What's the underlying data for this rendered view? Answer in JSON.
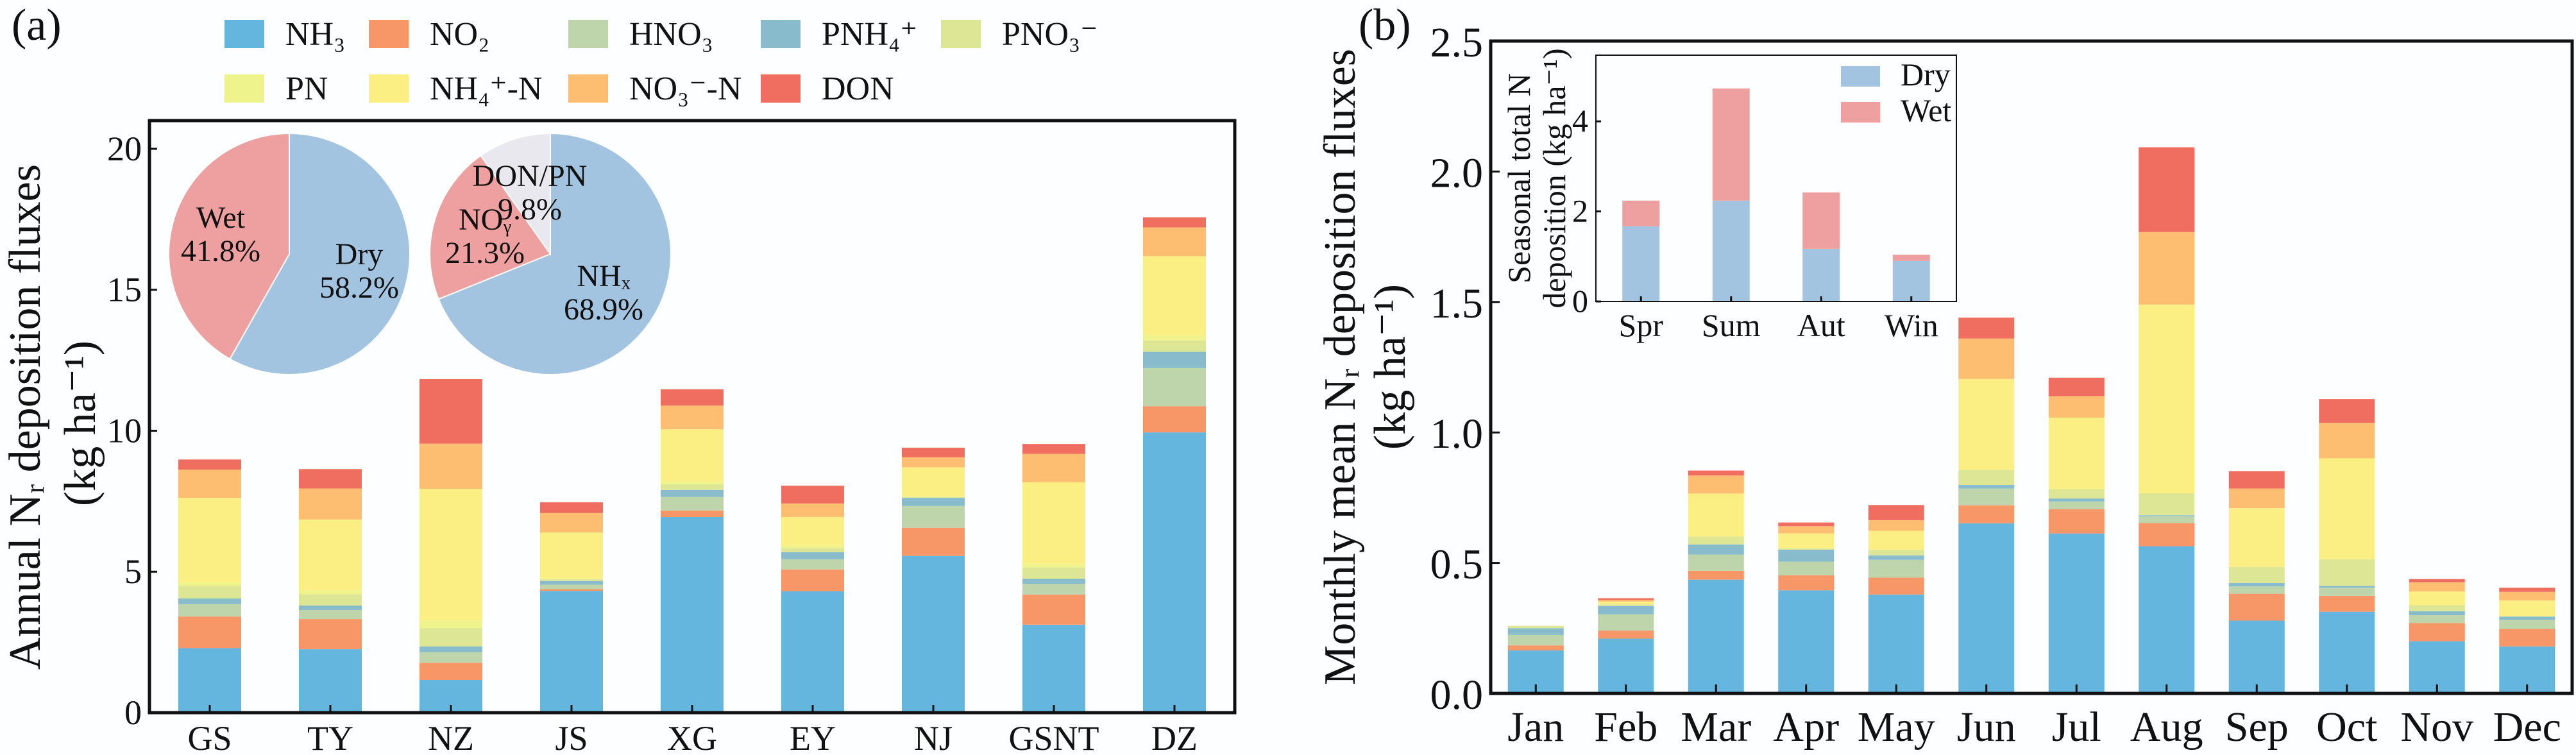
{
  "panels": {
    "a": "(a)",
    "b": "(b)"
  },
  "legend": {
    "series": [
      {
        "key": "NH3",
        "name": "NH₃",
        "color": "#65b6de"
      },
      {
        "key": "NO2",
        "name": "NO₂",
        "color": "#f79767"
      },
      {
        "key": "HNO3",
        "name": "HNO₃",
        "color": "#bed4ab"
      },
      {
        "key": "PNH4",
        "name": "PNH₄⁺",
        "color": "#88bccd"
      },
      {
        "key": "PNO3",
        "name": "PNO₃⁻",
        "color": "#dce695"
      },
      {
        "key": "PN",
        "name": "PN",
        "color": "#eff38c"
      },
      {
        "key": "NH4N",
        "name": "NH₄⁺-N",
        "color": "#fbef84"
      },
      {
        "key": "NO3N",
        "name": "NO₃⁻-N",
        "color": "#fdbe72"
      },
      {
        "key": "DON",
        "name": "DON",
        "color": "#f06e5f"
      }
    ]
  },
  "chart_data": [
    {
      "type": "bar",
      "stacked": true,
      "ylabel_line1": "Annual  Nᵣ deposition fluxes",
      "ylabel_line2": "(kg ha⁻¹)",
      "xlabel": "",
      "ylim": [
        0,
        21
      ],
      "yticks": [
        "0",
        "5",
        "10",
        "15",
        "20"
      ],
      "categories": [
        "GS",
        "TY",
        "NZ",
        "JS",
        "XG",
        "EY",
        "NJ",
        "GSNT",
        "DZ"
      ],
      "series": [
        {
          "name": "NH₃",
          "values": [
            2.29,
            2.25,
            1.16,
            4.32,
            6.94,
            4.31,
            5.56,
            3.12,
            9.94
          ]
        },
        {
          "name": "NO₂",
          "values": [
            1.12,
            1.07,
            0.61,
            0.06,
            0.23,
            0.77,
            1.0,
            1.07,
            0.93
          ]
        },
        {
          "name": "HNO₃",
          "values": [
            0.44,
            0.32,
            0.38,
            0.16,
            0.48,
            0.36,
            0.77,
            0.38,
            1.35
          ]
        },
        {
          "name": "PNH₄⁺",
          "values": [
            0.2,
            0.16,
            0.2,
            0.13,
            0.25,
            0.25,
            0.29,
            0.18,
            0.58
          ]
        },
        {
          "name": "PNO₃⁻",
          "values": [
            0.45,
            0.4,
            0.65,
            0.06,
            0.2,
            0.15,
            0.03,
            0.4,
            0.4
          ]
        },
        {
          "name": "PN",
          "values": [
            0.12,
            0.13,
            0.27,
            0.03,
            0.1,
            0.08,
            0.02,
            0.12,
            0.18
          ]
        },
        {
          "name": "NH₄⁺-N",
          "values": [
            3.0,
            2.52,
            4.67,
            1.63,
            1.85,
            1.02,
            1.03,
            2.9,
            2.81
          ]
        },
        {
          "name": "NO₃⁻-N",
          "values": [
            1.0,
            1.1,
            1.6,
            0.69,
            0.84,
            0.48,
            0.36,
            1.01,
            1.02
          ]
        },
        {
          "name": "DON",
          "values": [
            0.36,
            0.69,
            2.29,
            0.38,
            0.58,
            0.63,
            0.34,
            0.35,
            0.36
          ]
        }
      ],
      "legend_placement": "top"
    },
    {
      "type": "pie",
      "slices": [
        {
          "label": "Dry",
          "value": 58.2,
          "text": "58.2%",
          "color": "#a3c4e0"
        },
        {
          "label": "Wet",
          "value": 41.8,
          "text": "41.8%",
          "color": "#eda09f"
        }
      ]
    },
    {
      "type": "pie",
      "slices": [
        {
          "label": "NHₓ",
          "value": 68.9,
          "text": "68.9%",
          "color": "#a3c4e0"
        },
        {
          "label": "NOᵧ",
          "value": 21.3,
          "text": "21.3%",
          "color": "#eda09f"
        },
        {
          "label": "DON/PN",
          "value": 9.8,
          "text": "9.8%",
          "color": "#eae8ef"
        }
      ]
    },
    {
      "type": "bar",
      "stacked": true,
      "ylabel_line1": "Monthly mean Nᵣ deposition fluxes",
      "ylabel_line2": "(kg ha⁻¹)",
      "ylim": [
        0,
        2.5
      ],
      "yticks": [
        "0.0",
        "0.5",
        "1.0",
        "1.5",
        "2.0",
        "2.5"
      ],
      "categories": [
        "Jan",
        "Feb",
        "Mar",
        "Apr",
        "May",
        "Jun",
        "Jul",
        "Aug",
        "Sep",
        "Oct",
        "Nov",
        "Dec"
      ],
      "series": [
        {
          "name": "NH₃",
          "values": [
            0.165,
            0.21,
            0.436,
            0.395,
            0.379,
            0.652,
            0.613,
            0.564,
            0.279,
            0.313,
            0.2,
            0.18
          ]
        },
        {
          "name": "NO₂",
          "values": [
            0.019,
            0.031,
            0.034,
            0.058,
            0.065,
            0.069,
            0.093,
            0.089,
            0.103,
            0.061,
            0.07,
            0.067
          ]
        },
        {
          "name": "HNO₃",
          "values": [
            0.04,
            0.062,
            0.062,
            0.052,
            0.068,
            0.064,
            0.03,
            0.026,
            0.028,
            0.031,
            0.03,
            0.035
          ]
        },
        {
          "name": "PNH₄⁺",
          "values": [
            0.026,
            0.032,
            0.039,
            0.046,
            0.017,
            0.014,
            0.011,
            0.004,
            0.013,
            0.007,
            0.015,
            0.012
          ]
        },
        {
          "name": "PNO₃⁻",
          "values": [
            0.009,
            0.006,
            0.03,
            0.005,
            0.022,
            0.058,
            0.036,
            0.084,
            0.062,
            0.102,
            0.023,
            0.003
          ]
        },
        {
          "name": "PN",
          "values": [
            0,
            0,
            0,
            0,
            0,
            0,
            0,
            0,
            0,
            0,
            0,
            0
          ]
        },
        {
          "name": "NH₄⁺-N",
          "values": [
            0,
            0.011,
            0.165,
            0.057,
            0.072,
            0.348,
            0.274,
            0.723,
            0.225,
            0.387,
            0.053,
            0.059
          ]
        },
        {
          "name": "NO₃⁻-N",
          "values": [
            0,
            0.006,
            0.069,
            0.028,
            0.041,
            0.155,
            0.082,
            0.278,
            0.075,
            0.136,
            0.035,
            0.033
          ]
        },
        {
          "name": "DON",
          "values": [
            0,
            0.007,
            0.019,
            0.014,
            0.058,
            0.08,
            0.071,
            0.325,
            0.067,
            0.091,
            0.012,
            0.016
          ]
        }
      ]
    },
    {
      "type": "bar",
      "stacked": true,
      "ylabel_line1": "Seasonal total N",
      "ylabel_line2": "deposition (kg ha⁻¹)",
      "ylim": [
        0,
        5.47
      ],
      "yticks": [
        "0",
        "2",
        "4"
      ],
      "categories": [
        "Spr",
        "Sum",
        "Aut",
        "Win"
      ],
      "series": [
        {
          "name": "Dry",
          "color": "#a3c4e0",
          "values": [
            1.67,
            2.24,
            1.17,
            0.9
          ]
        },
        {
          "name": "Wet",
          "color": "#eda09f",
          "values": [
            0.57,
            2.49,
            1.25,
            0.14
          ]
        }
      ],
      "legend_placement": "top-right"
    }
  ]
}
